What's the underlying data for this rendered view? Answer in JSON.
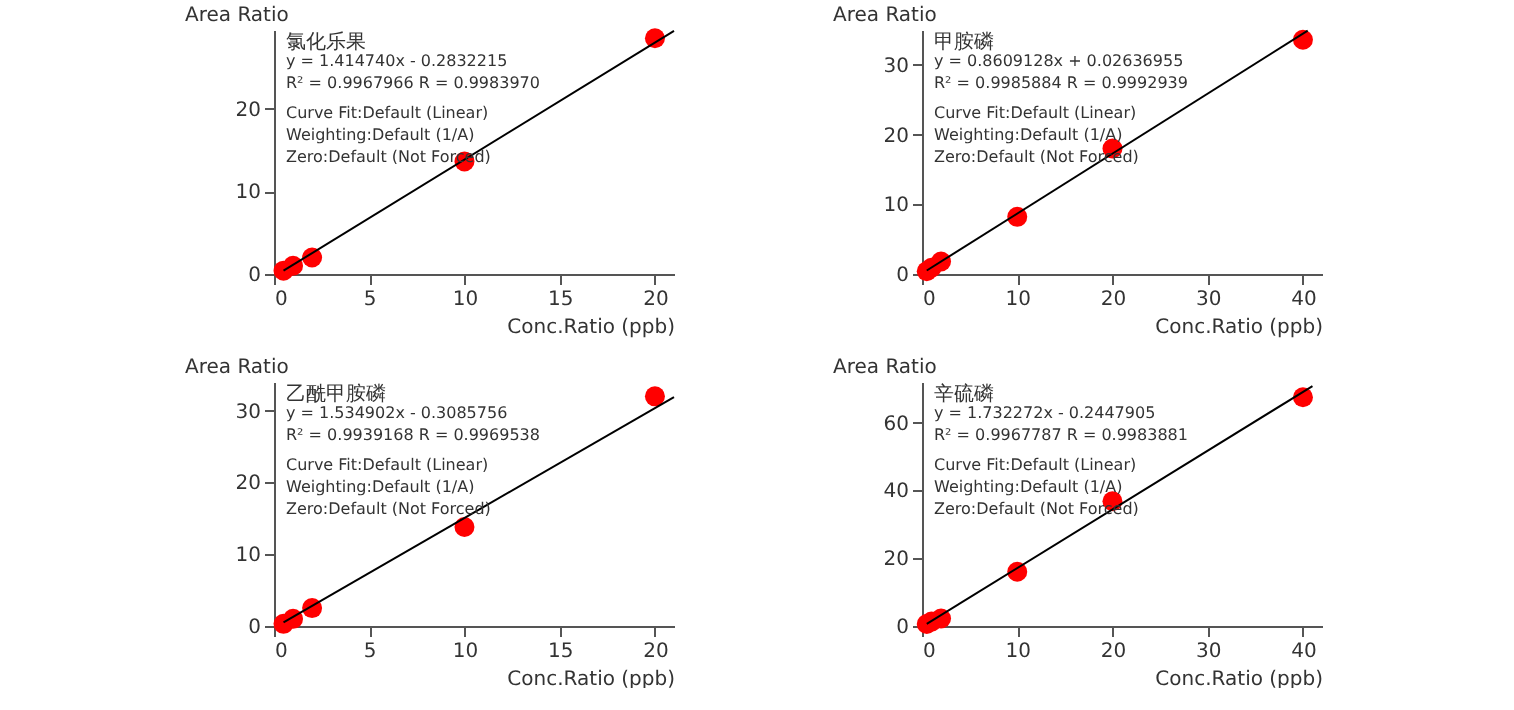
{
  "chart_data": [
    {
      "type": "scatter",
      "xlabel": "Conc.Ratio (ppb)",
      "ylabel": "Area Ratio",
      "xlim": [
        0,
        21
      ],
      "ylim": [
        0,
        29.5
      ],
      "xticks": [
        0,
        5,
        10,
        15,
        20
      ],
      "yticks": [
        0,
        10,
        20
      ],
      "grid": false,
      "annotations": [
        "氯化乐果",
        "y = 1.414740x - 0.2832215",
        "R² = 0.9967966    R = 0.9983970",
        "Curve Fit:Default (Linear)",
        "Weighting:Default (1/A)",
        "Zero:Default (Not Forced)"
      ],
      "series": [
        {
          "color": "#ff0000",
          "marker": "circle",
          "x": [
            0.5,
            1,
            2,
            10,
            20
          ],
          "values": [
            0.4,
            1.0,
            2.0,
            13.6,
            28.5
          ]
        },
        {
          "type": "line",
          "color": "#000000",
          "x": [
            0.5,
            21
          ],
          "values": [
            0.4,
            29.4
          ]
        }
      ]
    },
    {
      "type": "scatter",
      "xlabel": "Conc.Ratio (ppb)",
      "ylabel": "Area Ratio",
      "xlim": [
        0,
        42
      ],
      "ylim": [
        0,
        35
      ],
      "xticks": [
        0,
        10,
        20,
        30,
        40
      ],
      "yticks": [
        0,
        10,
        20,
        30
      ],
      "grid": false,
      "annotations": [
        "甲胺磷",
        "y = 0.8609128x + 0.02636955",
        "R² = 0.9985884    R = 0.9992939",
        "Curve Fit:Default (Linear)",
        "Weighting:Default (1/A)",
        "Zero:Default (Not Forced)"
      ],
      "series": [
        {
          "color": "#ff0000",
          "marker": "circle",
          "x": [
            0.5,
            1,
            2,
            10,
            20,
            40
          ],
          "values": [
            0.4,
            0.9,
            1.8,
            8.2,
            18.0,
            33.6
          ]
        },
        {
          "type": "line",
          "color": "#000000",
          "x": [
            0.5,
            40.5
          ],
          "values": [
            0.5,
            34.9
          ]
        }
      ]
    },
    {
      "type": "scatter",
      "xlabel": "Conc.Ratio (ppb)",
      "ylabel": "Area Ratio",
      "xlim": [
        0,
        21
      ],
      "ylim": [
        0,
        34
      ],
      "xticks": [
        0,
        5,
        10,
        15,
        20
      ],
      "yticks": [
        0,
        10,
        20,
        30
      ],
      "grid": false,
      "annotations": [
        "乙酰甲胺磷",
        "y = 1.534902x - 0.3085756",
        "R² = 0.9939168    R = 0.9969538",
        "Curve Fit:Default (Linear)",
        "Weighting:Default (1/A)",
        "Zero:Default (Not Forced)"
      ],
      "series": [
        {
          "color": "#ff0000",
          "marker": "circle",
          "x": [
            0.5,
            1,
            2,
            10,
            20
          ],
          "values": [
            0.3,
            1.0,
            2.5,
            13.8,
            32.0
          ]
        },
        {
          "type": "line",
          "color": "#000000",
          "x": [
            0.5,
            21
          ],
          "values": [
            0.5,
            31.9
          ]
        }
      ]
    },
    {
      "type": "scatter",
      "xlabel": "Conc.Ratio (ppb)",
      "ylabel": "Area Ratio",
      "xlim": [
        0,
        42
      ],
      "ylim": [
        0,
        72
      ],
      "xticks": [
        0,
        10,
        20,
        30,
        40
      ],
      "yticks": [
        0,
        20,
        40,
        60
      ],
      "grid": false,
      "annotations": [
        "辛硫磷",
        "y = 1.732272x - 0.2447905",
        "R² = 0.9967787    R = 0.9983881",
        "Curve Fit:Default (Linear)",
        "Weighting:Default (1/A)",
        "Zero:Default (Not Forced)"
      ],
      "series": [
        {
          "color": "#ff0000",
          "marker": "circle",
          "x": [
            0.5,
            1,
            2,
            10,
            20,
            40
          ],
          "values": [
            0.6,
            1.3,
            2.2,
            16.0,
            36.8,
            67.5
          ]
        },
        {
          "type": "line",
          "color": "#000000",
          "x": [
            0.5,
            41
          ],
          "values": [
            0.6,
            70.8
          ]
        }
      ]
    }
  ]
}
